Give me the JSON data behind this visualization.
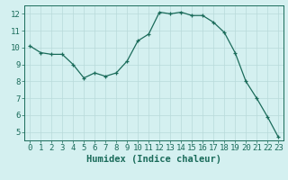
{
  "x": [
    0,
    1,
    2,
    3,
    4,
    5,
    6,
    7,
    8,
    9,
    10,
    11,
    12,
    13,
    14,
    15,
    16,
    17,
    18,
    19,
    20,
    21,
    22,
    23
  ],
  "y": [
    10.1,
    9.7,
    9.6,
    9.6,
    9.0,
    8.2,
    8.5,
    8.3,
    8.5,
    9.2,
    10.4,
    10.8,
    12.1,
    12.0,
    12.1,
    11.9,
    11.9,
    11.5,
    10.9,
    9.7,
    8.0,
    7.0,
    5.9,
    4.7
  ],
  "line_color": "#1a6b5a",
  "marker": "+",
  "xlabel": "Humidex (Indice chaleur)",
  "xlim": [
    -0.5,
    23.5
  ],
  "ylim": [
    4.5,
    12.5
  ],
  "yticks": [
    5,
    6,
    7,
    8,
    9,
    10,
    11,
    12
  ],
  "xticks": [
    0,
    1,
    2,
    3,
    4,
    5,
    6,
    7,
    8,
    9,
    10,
    11,
    12,
    13,
    14,
    15,
    16,
    17,
    18,
    19,
    20,
    21,
    22,
    23
  ],
  "bg_color": "#d4f0f0",
  "grid_color": "#b8dada",
  "tick_color": "#1a6b5a",
  "label_color": "#1a6b5a",
  "tick_fontsize": 6.5,
  "xlabel_fontsize": 7.5
}
